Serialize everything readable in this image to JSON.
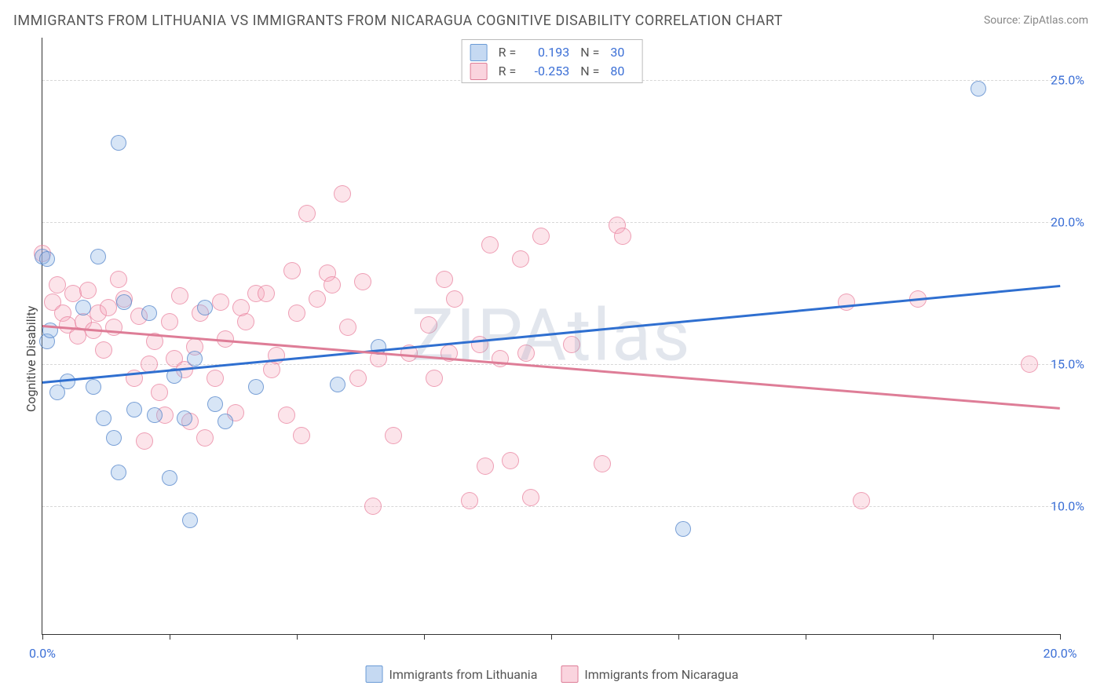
{
  "title": "IMMIGRANTS FROM LITHUANIA VS IMMIGRANTS FROM NICARAGUA COGNITIVE DISABILITY CORRELATION CHART",
  "source_prefix": "Source: ",
  "source_name": "ZipAtlas.com",
  "watermark": "ZIPAtlas",
  "ylabel": "Cognitive Disability",
  "chart": {
    "type": "scatter",
    "xlim": [
      0,
      20
    ],
    "ylim": [
      5.5,
      26.5
    ],
    "x_ticks": [
      0,
      2.5,
      5,
      7.5,
      10,
      12.5,
      15,
      17.5,
      20
    ],
    "x_tick_labels": {
      "0": "0.0%",
      "20": "20.0%"
    },
    "y_grid": [
      10,
      15,
      20,
      25
    ],
    "y_grid_labels": [
      "10.0%",
      "15.0%",
      "20.0%",
      "25.0%"
    ],
    "background_color": "#ffffff",
    "grid_color": "#d8d8d8",
    "axis_color": "#333333",
    "tick_label_color": "#3b6fd6",
    "title_fontsize": 18,
    "label_fontsize": 16,
    "series": [
      {
        "name": "Immigrants from Lithuania",
        "key": "blue",
        "color_fill": "rgba(140,180,230,0.35)",
        "color_stroke": "#5082c8",
        "R": "0.193",
        "N": "30",
        "marker_radius": 9,
        "trend": {
          "x1": 0,
          "y1": 14.4,
          "x2": 20,
          "y2": 17.8,
          "color": "#2f6fd0",
          "width": 2.5
        },
        "points": [
          [
            0.1,
            15.8
          ],
          [
            0.15,
            16.2
          ],
          [
            0.0,
            18.8
          ],
          [
            0.1,
            18.7
          ],
          [
            1.1,
            18.8
          ],
          [
            0.3,
            14.0
          ],
          [
            0.5,
            14.4
          ],
          [
            0.8,
            17.0
          ],
          [
            1.0,
            14.2
          ],
          [
            1.2,
            13.1
          ],
          [
            1.4,
            12.4
          ],
          [
            1.5,
            11.2
          ],
          [
            1.6,
            17.2
          ],
          [
            1.8,
            13.4
          ],
          [
            1.5,
            22.8
          ],
          [
            2.1,
            16.8
          ],
          [
            2.2,
            13.2
          ],
          [
            2.5,
            11.0
          ],
          [
            2.6,
            14.6
          ],
          [
            2.8,
            13.1
          ],
          [
            3.0,
            15.2
          ],
          [
            3.2,
            17.0
          ],
          [
            3.4,
            13.6
          ],
          [
            3.6,
            13.0
          ],
          [
            2.9,
            9.5
          ],
          [
            4.2,
            14.2
          ],
          [
            5.8,
            14.3
          ],
          [
            6.6,
            15.6
          ],
          [
            12.6,
            9.2
          ],
          [
            18.4,
            24.7
          ]
        ]
      },
      {
        "name": "Immigrants from Nicaragua",
        "key": "pink",
        "color_fill": "rgba(245,170,190,0.32)",
        "color_stroke": "#e67896",
        "R": "-0.253",
        "N": "80",
        "marker_radius": 10,
        "trend": {
          "x1": 0,
          "y1": 16.4,
          "x2": 20,
          "y2": 13.5,
          "color": "#de7d97",
          "width": 2.5
        },
        "points": [
          [
            0.0,
            18.9
          ],
          [
            0.2,
            17.2
          ],
          [
            0.3,
            17.8
          ],
          [
            0.4,
            16.8
          ],
          [
            0.5,
            16.4
          ],
          [
            0.6,
            17.5
          ],
          [
            0.7,
            16.0
          ],
          [
            0.8,
            16.5
          ],
          [
            0.9,
            17.6
          ],
          [
            1.0,
            16.2
          ],
          [
            1.1,
            16.8
          ],
          [
            1.2,
            15.5
          ],
          [
            1.3,
            17.0
          ],
          [
            1.4,
            16.3
          ],
          [
            1.5,
            18.0
          ],
          [
            1.6,
            17.3
          ],
          [
            1.8,
            14.5
          ],
          [
            1.9,
            16.7
          ],
          [
            2.0,
            12.3
          ],
          [
            2.1,
            15.0
          ],
          [
            2.2,
            15.8
          ],
          [
            2.3,
            14.0
          ],
          [
            2.4,
            13.2
          ],
          [
            2.5,
            16.5
          ],
          [
            2.6,
            15.2
          ],
          [
            2.7,
            17.4
          ],
          [
            2.8,
            14.8
          ],
          [
            2.9,
            13.0
          ],
          [
            3.0,
            15.6
          ],
          [
            3.1,
            16.8
          ],
          [
            3.2,
            12.4
          ],
          [
            3.4,
            14.5
          ],
          [
            3.5,
            17.2
          ],
          [
            3.6,
            15.9
          ],
          [
            3.8,
            13.3
          ],
          [
            4.0,
            16.5
          ],
          [
            4.2,
            17.5
          ],
          [
            4.4,
            17.5
          ],
          [
            4.5,
            14.8
          ],
          [
            4.6,
            15.3
          ],
          [
            4.8,
            13.2
          ],
          [
            4.9,
            18.3
          ],
          [
            5.0,
            16.8
          ],
          [
            5.1,
            12.5
          ],
          [
            5.2,
            20.3
          ],
          [
            5.4,
            17.3
          ],
          [
            5.6,
            18.2
          ],
          [
            5.7,
            17.8
          ],
          [
            5.9,
            21.0
          ],
          [
            6.2,
            14.5
          ],
          [
            6.3,
            17.9
          ],
          [
            6.5,
            10.0
          ],
          [
            6.6,
            15.2
          ],
          [
            6.9,
            12.5
          ],
          [
            7.2,
            15.4
          ],
          [
            7.6,
            16.4
          ],
          [
            7.7,
            14.5
          ],
          [
            7.9,
            18.0
          ],
          [
            8.0,
            15.4
          ],
          [
            8.1,
            17.3
          ],
          [
            8.4,
            10.2
          ],
          [
            8.6,
            15.7
          ],
          [
            8.7,
            11.4
          ],
          [
            8.8,
            19.2
          ],
          [
            9.0,
            15.2
          ],
          [
            9.2,
            11.6
          ],
          [
            9.4,
            18.7
          ],
          [
            9.5,
            15.4
          ],
          [
            9.6,
            10.3
          ],
          [
            9.8,
            19.5
          ],
          [
            10.4,
            15.7
          ],
          [
            11.0,
            11.5
          ],
          [
            11.3,
            19.9
          ],
          [
            11.4,
            19.5
          ],
          [
            15.8,
            17.2
          ],
          [
            16.1,
            10.2
          ],
          [
            17.2,
            17.3
          ],
          [
            19.4,
            15.0
          ],
          [
            3.9,
            17.0
          ],
          [
            6.0,
            16.3
          ]
        ]
      }
    ],
    "legend_top": {
      "r_label": "R =",
      "n_label": "N ="
    },
    "legend_bottom": [
      "Immigrants from Lithuania",
      "Immigrants from Nicaragua"
    ]
  }
}
